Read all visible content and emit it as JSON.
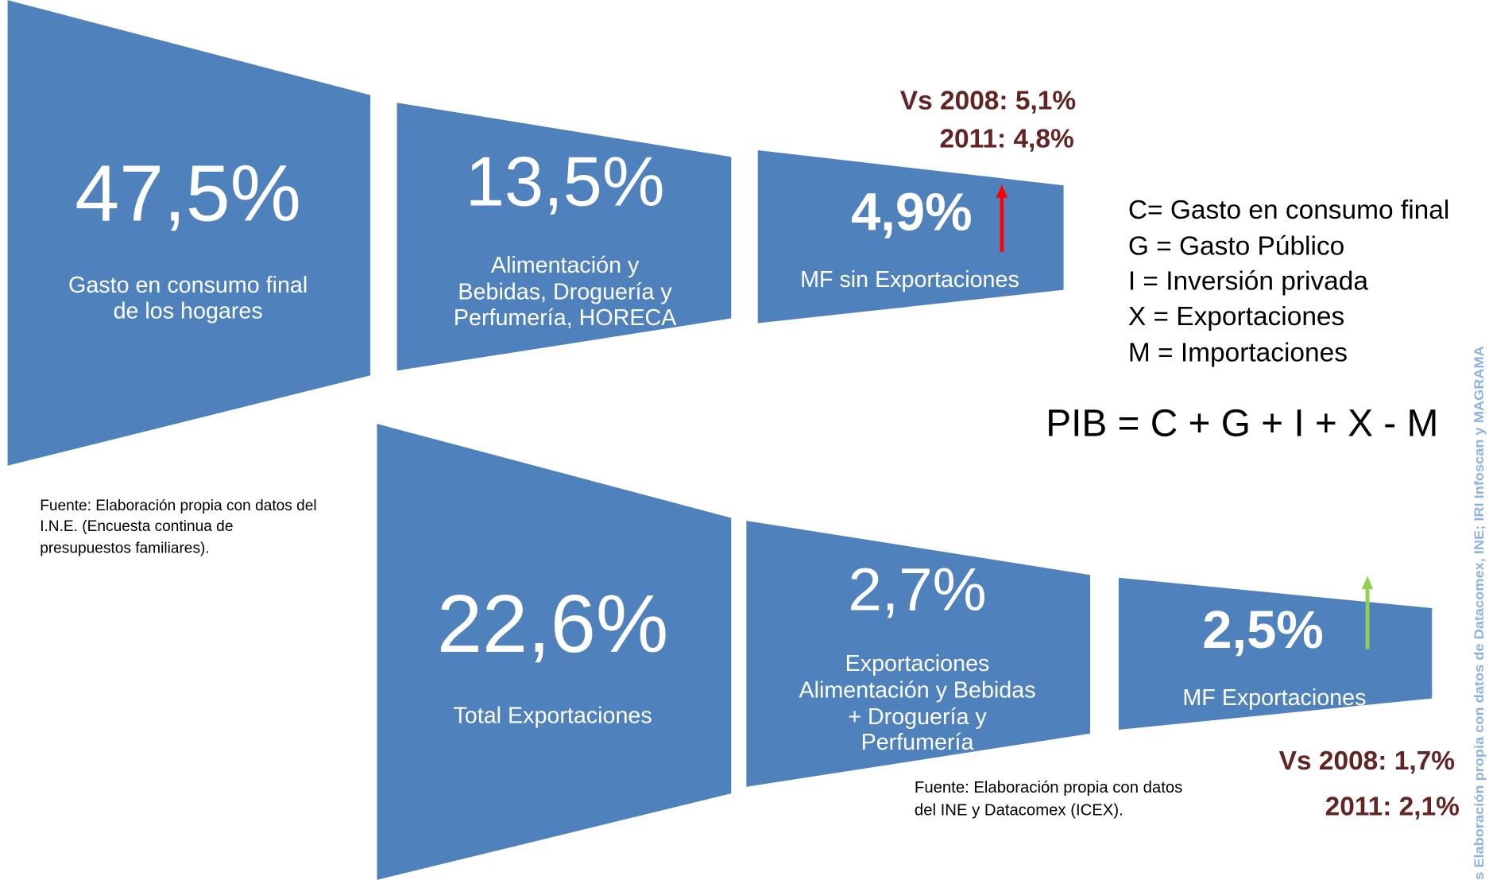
{
  "top_funnel": {
    "stages": [
      {
        "value": "47,5%",
        "label": [
          "Gasto en consumo final",
          "de los hogares"
        ]
      },
      {
        "value": "13,5%",
        "label": [
          "Alimentación y",
          "Bebidas, Droguería y",
          "Perfumería, HORECA"
        ]
      },
      {
        "value": "4,9%",
        "label": [
          "MF sin Exportaciones"
        ]
      }
    ],
    "annotation": [
      "Vs 2008: 5,1%",
      "2011: 4,8%"
    ],
    "source": [
      "Fuente: Elaboración propia con datos del",
      "I.N.E. (Encuesta continua de",
      "presupuestos familiares)."
    ]
  },
  "bottom_funnel": {
    "stages": [
      {
        "value": "22,6%",
        "label": [
          "Total Exportaciones"
        ]
      },
      {
        "value": "2,7%",
        "label": [
          "Exportaciones",
          "Alimentación y Bebidas",
          "+ Droguería y",
          "Perfumería"
        ]
      },
      {
        "value": "2,5%",
        "label": [
          "MF  Exportaciones"
        ]
      }
    ],
    "annotation": [
      "Vs 2008: 1,7%",
      "2011: 2,1%"
    ],
    "source": [
      "Fuente: Elaboración propia con datos",
      "del INE y Datacomex (ICEX)."
    ]
  },
  "legend": [
    "C= Gasto en consumo final",
    "G = Gasto Público",
    "I = Inversión privada",
    "X = Exportaciones",
    "M = Importaciones"
  ],
  "formula": "PIB = C + G + I + X - M",
  "side_note": "s Elaboración propia con datos de Datacomex, INE; IRI Infoscan y MAGRAMA"
}
